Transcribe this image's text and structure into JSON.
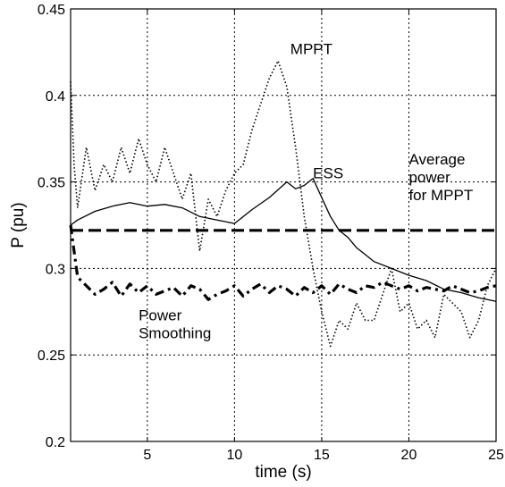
{
  "chart_data": {
    "type": "line",
    "xlabel": "time (s)",
    "ylabel": "P (pu)",
    "xlim": [
      0.6,
      25
    ],
    "ylim": [
      0.2,
      0.45
    ],
    "x_ticks": [
      5,
      10,
      15,
      20,
      25
    ],
    "y_ticks": [
      0.2,
      0.25,
      0.3,
      0.35,
      0.4,
      0.45
    ],
    "y_tick_labels": [
      "0.2",
      "0.25",
      "0.3",
      "0.35",
      "0.4",
      "0.45"
    ],
    "grid": true,
    "series": [
      {
        "name": "MPPT",
        "style": "dotted",
        "color": "#000000",
        "x": [
          0.6,
          0.8,
          1.0,
          1.5,
          2.0,
          2.5,
          3.0,
          3.5,
          4.0,
          4.5,
          5.0,
          5.5,
          6.0,
          6.5,
          7.0,
          7.5,
          8.0,
          8.5,
          9.0,
          9.5,
          10.0,
          10.5,
          11.0,
          11.5,
          12.0,
          12.5,
          13.0,
          13.5,
          14.0,
          14.5,
          15.0,
          15.5,
          16.0,
          16.5,
          17.0,
          17.5,
          18.0,
          18.5,
          19.0,
          19.5,
          20.0,
          20.5,
          21.0,
          21.5,
          22.0,
          22.5,
          23.0,
          23.5,
          24.0,
          24.5,
          25.0
        ],
        "values": [
          0.408,
          0.36,
          0.335,
          0.37,
          0.345,
          0.36,
          0.35,
          0.37,
          0.355,
          0.375,
          0.36,
          0.35,
          0.37,
          0.355,
          0.34,
          0.355,
          0.31,
          0.34,
          0.33,
          0.345,
          0.355,
          0.36,
          0.38,
          0.395,
          0.41,
          0.42,
          0.405,
          0.37,
          0.33,
          0.3,
          0.275,
          0.255,
          0.27,
          0.265,
          0.28,
          0.27,
          0.27,
          0.285,
          0.3,
          0.275,
          0.28,
          0.265,
          0.27,
          0.26,
          0.285,
          0.28,
          0.275,
          0.26,
          0.27,
          0.29,
          0.3
        ]
      },
      {
        "name": "ESS",
        "style": "solid",
        "color": "#000000",
        "x": [
          0.6,
          1.0,
          2.0,
          3.0,
          4.0,
          5.0,
          6.0,
          7.0,
          8.0,
          9.0,
          10.0,
          11.0,
          12.0,
          13.0,
          13.5,
          14.0,
          14.5,
          15.0,
          15.5,
          16.0,
          16.5,
          17.0,
          17.5,
          18.0,
          19.0,
          20.0,
          21.0,
          22.0,
          23.0,
          24.0,
          25.0
        ],
        "values": [
          0.325,
          0.328,
          0.333,
          0.336,
          0.338,
          0.336,
          0.337,
          0.335,
          0.33,
          0.328,
          0.326,
          0.334,
          0.341,
          0.35,
          0.346,
          0.348,
          0.352,
          0.341,
          0.33,
          0.322,
          0.318,
          0.312,
          0.308,
          0.304,
          0.3,
          0.296,
          0.293,
          0.288,
          0.286,
          0.283,
          0.281
        ]
      },
      {
        "name": "Average power for MPPT",
        "style": "dashed",
        "color": "#000000",
        "x": [
          0.6,
          25.0
        ],
        "values": [
          0.322,
          0.322
        ]
      },
      {
        "name": "Power Smoothing",
        "style": "dashdot",
        "color": "#000000",
        "x": [
          0.6,
          0.8,
          1.0,
          1.5,
          2.0,
          2.5,
          3.0,
          3.5,
          4.0,
          4.5,
          5.0,
          5.5,
          6.0,
          6.5,
          7.0,
          7.5,
          8.0,
          8.5,
          9.0,
          9.5,
          10.0,
          10.5,
          11.0,
          11.5,
          12.0,
          12.5,
          13.0,
          13.5,
          14.0,
          14.5,
          15.0,
          15.5,
          16.0,
          16.5,
          17.0,
          17.5,
          18.0,
          18.5,
          19.0,
          19.5,
          20.0,
          20.5,
          21.0,
          21.5,
          22.0,
          22.5,
          23.0,
          23.5,
          24.0,
          24.5,
          25.0
        ],
        "values": [
          0.325,
          0.31,
          0.295,
          0.29,
          0.285,
          0.288,
          0.292,
          0.284,
          0.291,
          0.286,
          0.29,
          0.285,
          0.287,
          0.289,
          0.284,
          0.29,
          0.288,
          0.282,
          0.285,
          0.287,
          0.29,
          0.284,
          0.288,
          0.291,
          0.286,
          0.29,
          0.288,
          0.284,
          0.289,
          0.286,
          0.29,
          0.285,
          0.291,
          0.288,
          0.286,
          0.29,
          0.289,
          0.292,
          0.29,
          0.288,
          0.29,
          0.287,
          0.289,
          0.288,
          0.287,
          0.29,
          0.288,
          0.286,
          0.287,
          0.289,
          0.29
        ]
      }
    ],
    "annotations": [
      {
        "text": "MPPT",
        "lines": [
          "MPPT"
        ],
        "x": 13.2,
        "y": 0.424
      },
      {
        "text": "ESS",
        "lines": [
          "ESS"
        ],
        "x": 14.5,
        "y": 0.352
      },
      {
        "text": "Average power for MPPT",
        "lines": [
          "Average",
          "power",
          "for MPPT"
        ],
        "x": 20.0,
        "y": 0.36
      },
      {
        "text": "Power Smoothing",
        "lines": [
          "Power",
          "Smoothing"
        ],
        "x": 4.5,
        "y": 0.27
      }
    ]
  }
}
